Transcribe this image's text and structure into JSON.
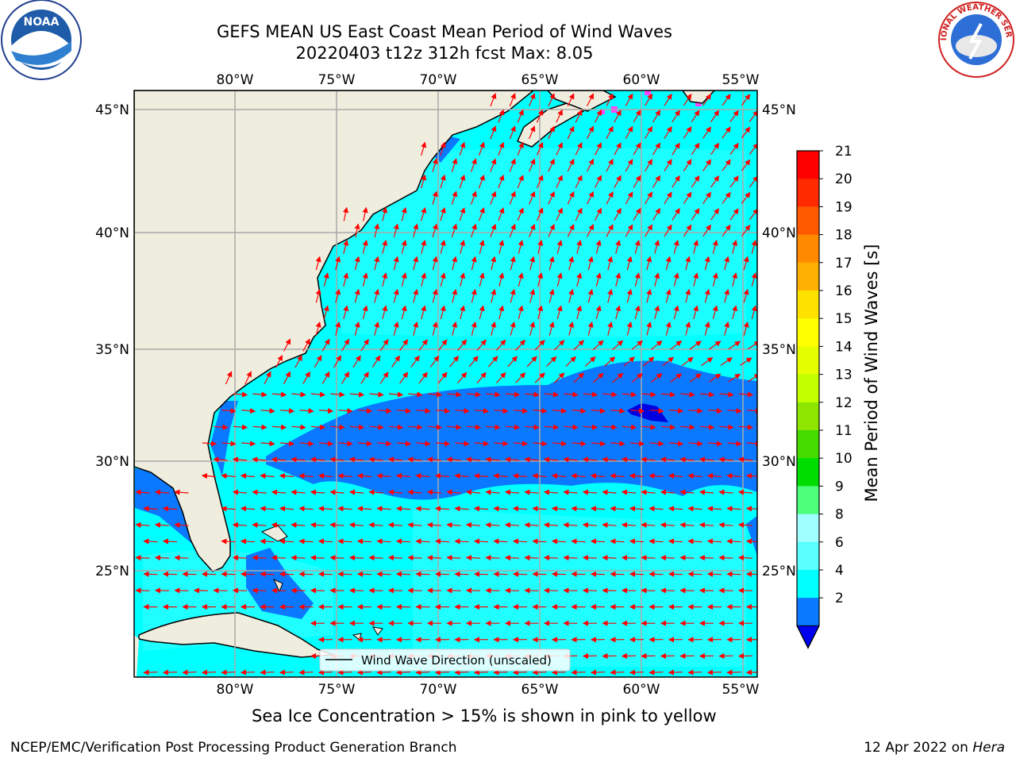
{
  "title": {
    "line1": "GEFS MEAN US East Coast Mean Period of Wind Waves",
    "line2": "20220403 t12z 312h fcst   Max: 8.05"
  },
  "map": {
    "lon_ticks": [
      "80°W",
      "75°W",
      "70°W",
      "65°W",
      "60°W",
      "55°W"
    ],
    "lat_ticks": [
      "45°N",
      "40°N",
      "35°N",
      "30°N",
      "25°N"
    ],
    "legend_label": "Wind Wave Direction (unscaled)",
    "arrow_color": "#ff0000",
    "land_color": "#efedde",
    "colors": {
      "period_2_4": "#0a78ff",
      "period_4_6": "#00ffff",
      "period_6_8": "#50ffff",
      "period_lt_2": "#0000e0",
      "sea_ice": "#ff44ff"
    }
  },
  "colorbar": {
    "label": "Mean Period of Wind Waves [s]",
    "ticks": [
      "21",
      "20",
      "19",
      "18",
      "17",
      "16",
      "15",
      "14",
      "13",
      "12",
      "11",
      "10",
      "9",
      "8",
      "6",
      "4",
      "2"
    ],
    "colors": [
      "#ff0000",
      "#ff2a00",
      "#ff5a00",
      "#ff8a00",
      "#ffb000",
      "#ffe100",
      "#ffff00",
      "#e6ff00",
      "#c4ff00",
      "#8ee600",
      "#46dc00",
      "#00dd00",
      "#4dff7a",
      "#a0ffff",
      "#5affff",
      "#00ffff",
      "#0a78ff"
    ],
    "extend_color": "#0000ee"
  },
  "subtitle": "Sea Ice Concentration > 15% is shown in pink to yellow",
  "footer": {
    "left": "NCEP/EMC/Verification Post Processing Product Generation Branch",
    "date": "12 Apr 2022 on ",
    "machine": "Hera"
  },
  "logos": {
    "noaa": "NOAA",
    "nws_text": "NATIONAL WEATHER SERVICE"
  }
}
